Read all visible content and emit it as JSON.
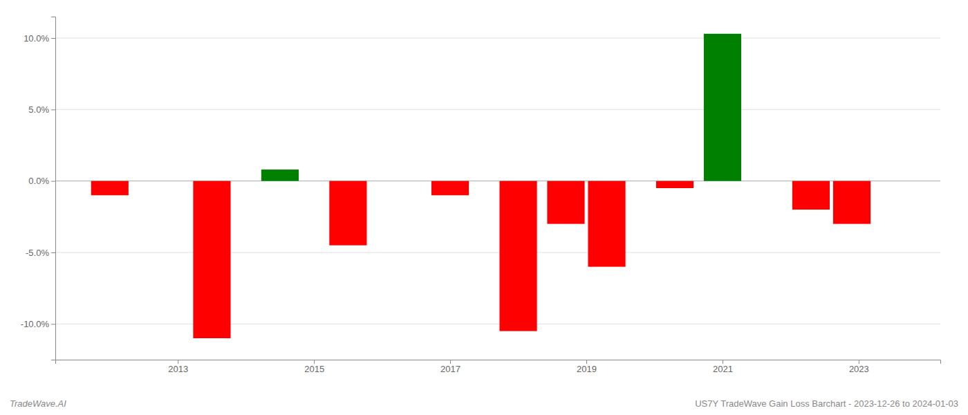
{
  "chart_data": {
    "type": "bar",
    "x": [
      2012.0,
      2013.5,
      2014.5,
      2015.5,
      2017.0,
      2018.0,
      2018.7,
      2019.3,
      2020.3,
      2021.0,
      2022.3,
      2022.9
    ],
    "values": [
      -0.01,
      -0.11,
      0.008,
      -0.045,
      -0.01,
      -0.105,
      -0.03,
      -0.06,
      -0.005,
      0.103,
      -0.02,
      -0.03
    ],
    "colors": [
      "#ff0000",
      "#ff0000",
      "#008000",
      "#ff0000",
      "#ff0000",
      "#ff0000",
      "#ff0000",
      "#ff0000",
      "#ff0000",
      "#008000",
      "#ff0000",
      "#ff0000"
    ],
    "xlim": [
      2011.2,
      2024.2
    ],
    "xticks": [
      2013,
      2015,
      2017,
      2019,
      2021,
      2023
    ],
    "ylim": [
      -0.125,
      0.115
    ],
    "yticks": [
      {
        "value": -0.1,
        "label": "-10.0%"
      },
      {
        "value": -0.05,
        "label": "-5.0%"
      },
      {
        "value": 0.0,
        "label": "0.0%"
      },
      {
        "value": 0.05,
        "label": "5.0%"
      },
      {
        "value": 0.1,
        "label": "10.0%"
      }
    ],
    "grid": true,
    "annotations": [
      "TradeWave.AI",
      "US7Y TradeWave Gain Loss Barchart - 2023-12-26 to 2024-01-03"
    ]
  }
}
